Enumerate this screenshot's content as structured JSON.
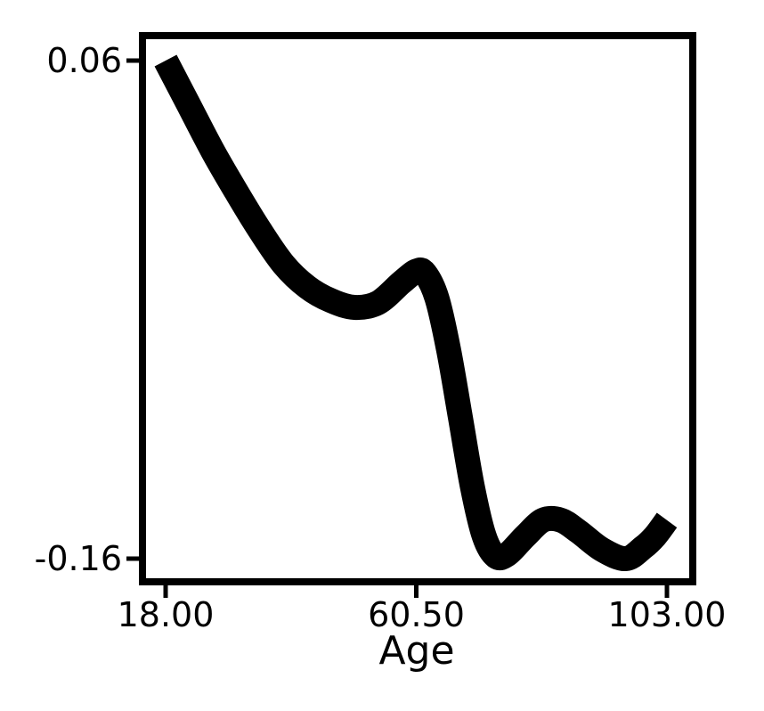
{
  "chart_data": {
    "type": "line",
    "title": "",
    "xlabel": "Age",
    "ylabel": "",
    "xlim": [
      18.0,
      103.0
    ],
    "ylim": [
      -0.16,
      0.06
    ],
    "x_ticks": [
      18.0,
      60.5,
      103.0
    ],
    "x_tick_labels": [
      "18.00",
      "60.50",
      "103.00"
    ],
    "y_ticks": [
      -0.16,
      0.06
    ],
    "y_tick_labels": [
      "-0.16",
      "0.06"
    ],
    "grid": false,
    "legend": "none",
    "line_color": "#000000",
    "series": [
      {
        "x": [
          18.0,
          22.0,
          26.0,
          30.0,
          34.0,
          38.0,
          42.0,
          46.0,
          50.0,
          54.0,
          58.0,
          60.5,
          62.0,
          64.0,
          66.0,
          68.0,
          70.0,
          72.0,
          74.0,
          76.0,
          79.0,
          82.0,
          85.0,
          88.0,
          92.0,
          96.0,
          99.0,
          101.0,
          103.0
        ],
        "y": [
          0.06,
          0.04,
          0.02,
          0.002,
          -0.015,
          -0.03,
          -0.04,
          -0.046,
          -0.049,
          -0.047,
          -0.038,
          -0.033,
          -0.034,
          -0.045,
          -0.068,
          -0.098,
          -0.128,
          -0.15,
          -0.159,
          -0.158,
          -0.15,
          -0.143,
          -0.143,
          -0.148,
          -0.156,
          -0.16,
          -0.155,
          -0.15,
          -0.143
        ]
      }
    ]
  }
}
